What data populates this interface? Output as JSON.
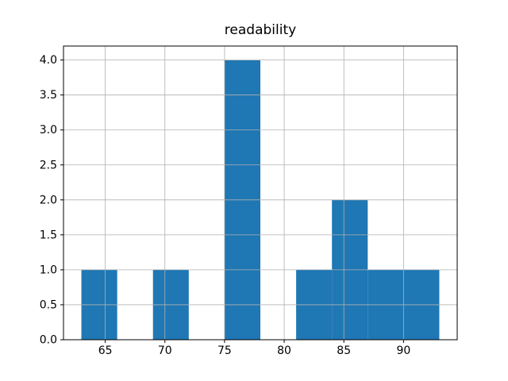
{
  "chart_data": {
    "type": "bar",
    "subtype": "histogram",
    "title": "readability",
    "xlabel": "",
    "ylabel": "",
    "bin_edges": [
      63,
      66,
      69,
      72,
      75,
      78,
      81,
      84,
      87,
      90,
      93
    ],
    "counts": [
      1,
      0,
      1,
      0,
      4,
      0,
      1,
      2,
      1,
      1
    ],
    "xlim": [
      61.5,
      94.5
    ],
    "ylim": [
      0,
      4.2
    ],
    "xticks": {
      "values": [
        65,
        70,
        75,
        80,
        85,
        90
      ],
      "labels": [
        "65",
        "70",
        "75",
        "80",
        "85",
        "90"
      ]
    },
    "yticks": {
      "values": [
        0,
        0.5,
        1,
        1.5,
        2,
        2.5,
        3,
        3.5,
        4
      ],
      "labels": [
        "0.0",
        "0.5",
        "1.0",
        "1.5",
        "2.0",
        "2.5",
        "3.0",
        "3.5",
        "4.0"
      ]
    },
    "grid": true,
    "grid_above_bars": true,
    "legend": null,
    "colors": {
      "bar": "#1f77b4",
      "grid": "#b0b0b0",
      "spine": "#000000",
      "text": "#000000",
      "background": "#ffffff"
    }
  }
}
